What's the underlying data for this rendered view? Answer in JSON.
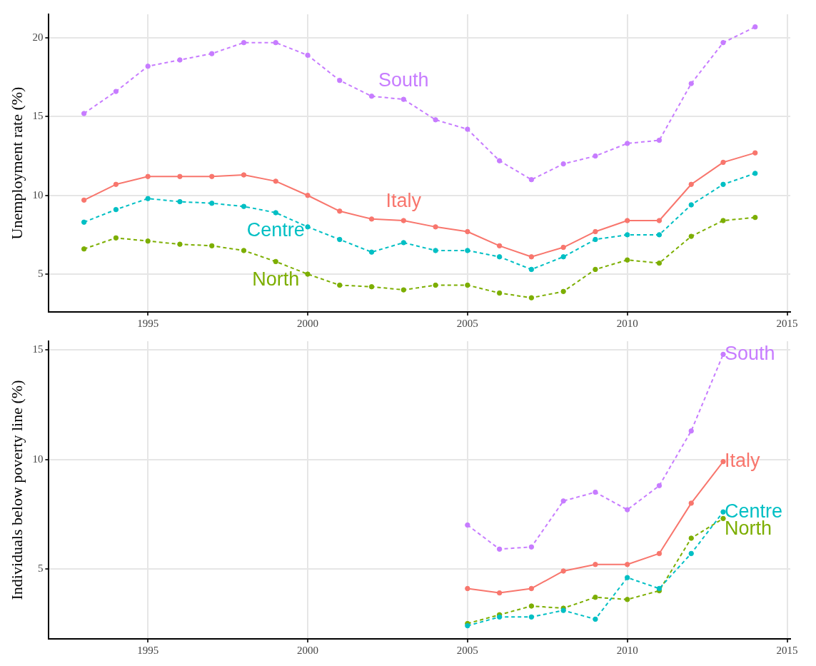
{
  "chart_data": [
    {
      "type": "line",
      "ylabel": "Unemployment rate (%)",
      "x": [
        1993,
        1994,
        1995,
        1996,
        1997,
        1998,
        1999,
        2000,
        2001,
        2002,
        2003,
        2004,
        2005,
        2006,
        2007,
        2008,
        2009,
        2010,
        2011,
        2012,
        2013,
        2014
      ],
      "xlim": [
        1991.9,
        2015.1
      ],
      "xticks": [
        1995,
        2000,
        2005,
        2010,
        2015
      ],
      "ylim": [
        2.6,
        21.5
      ],
      "yticks": [
        5,
        10,
        15,
        20
      ],
      "grid": true,
      "marker": "circle",
      "series": [
        {
          "name": "South",
          "color": "#c77cff",
          "line_style": "dashed",
          "values": [
            15.2,
            16.6,
            18.2,
            18.6,
            19.0,
            19.7,
            19.7,
            18.9,
            17.3,
            16.3,
            16.1,
            14.8,
            14.2,
            12.2,
            11.0,
            12.0,
            12.5,
            13.3,
            13.5,
            17.1,
            19.7,
            20.7
          ]
        },
        {
          "name": "Italy",
          "color": "#f8766d",
          "line_style": "solid",
          "values": [
            9.7,
            10.7,
            11.2,
            11.2,
            11.2,
            11.3,
            10.9,
            10.0,
            9.0,
            8.5,
            8.4,
            8.0,
            7.7,
            6.8,
            6.1,
            6.7,
            7.7,
            8.4,
            8.4,
            10.7,
            12.1,
            12.7
          ]
        },
        {
          "name": "Centre",
          "color": "#00bfc4",
          "line_style": "dashed",
          "values": [
            8.3,
            9.1,
            9.8,
            9.6,
            9.5,
            9.3,
            8.9,
            8.0,
            7.2,
            6.4,
            7.0,
            6.5,
            6.5,
            6.1,
            5.3,
            6.1,
            7.2,
            7.5,
            7.5,
            9.4,
            10.7,
            11.4
          ]
        },
        {
          "name": "North",
          "color": "#7cae00",
          "line_style": "dashed",
          "values": [
            6.6,
            7.3,
            7.1,
            6.9,
            6.8,
            6.5,
            5.8,
            5.0,
            4.3,
            4.2,
            4.0,
            4.3,
            4.3,
            3.8,
            3.5,
            3.9,
            5.3,
            5.9,
            5.7,
            7.4,
            8.4,
            8.6
          ]
        }
      ]
    },
    {
      "type": "line",
      "ylabel": "Individuals below poverty line (%)",
      "x": [
        2005,
        2006,
        2007,
        2008,
        2009,
        2010,
        2011,
        2012,
        2013
      ],
      "xlim": [
        1991.9,
        2015.1
      ],
      "xticks": [
        1995,
        2000,
        2005,
        2010,
        2015
      ],
      "ylim": [
        1.8,
        15.4
      ],
      "yticks": [
        5,
        10,
        15
      ],
      "grid": true,
      "marker": "circle",
      "series": [
        {
          "name": "South",
          "color": "#c77cff",
          "line_style": "dashed",
          "values": [
            7.0,
            5.9,
            6.0,
            8.1,
            8.5,
            7.7,
            8.8,
            11.3,
            14.8
          ]
        },
        {
          "name": "Italy",
          "color": "#f8766d",
          "line_style": "solid",
          "values": [
            4.1,
            3.9,
            4.1,
            4.9,
            5.2,
            5.2,
            5.7,
            8.0,
            9.9
          ]
        },
        {
          "name": "Centre",
          "color": "#00bfc4",
          "line_style": "dashed",
          "values": [
            2.4,
            2.8,
            2.8,
            3.1,
            2.7,
            4.6,
            4.1,
            5.7,
            7.6
          ]
        },
        {
          "name": "North",
          "color": "#7cae00",
          "line_style": "dashed",
          "values": [
            2.5,
            2.9,
            3.3,
            3.2,
            3.7,
            3.6,
            4.0,
            6.4,
            7.3
          ]
        }
      ]
    }
  ]
}
